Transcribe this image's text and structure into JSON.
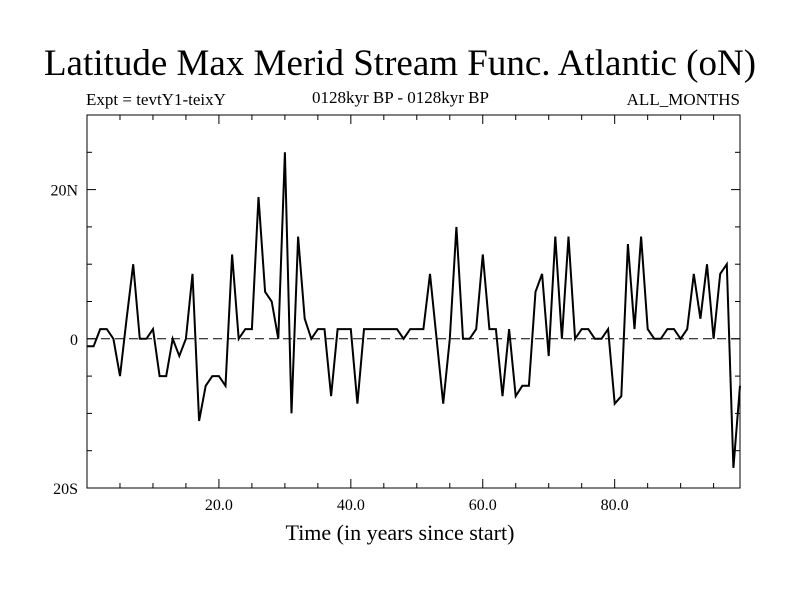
{
  "chart_data": {
    "type": "line",
    "title": "Latitude Max Merid Stream Func. Atlantic (oN)",
    "subtitle_left": "Expt = tevtY1-teixY",
    "subtitle_center": "0128kyr BP - 0128kyr BP",
    "subtitle_right": "ALL_MONTHS",
    "xlabel": "Time (in years since start)",
    "ylabel": "",
    "xlim": [
      0,
      99
    ],
    "ylim": [
      -20,
      30
    ],
    "x_ticks": [
      20,
      40,
      60,
      80
    ],
    "x_tick_labels": [
      "20.0",
      "40.0",
      "60.0",
      "80.0"
    ],
    "y_ticks": [
      -20,
      0,
      20
    ],
    "y_tick_labels": [
      "20S",
      "0",
      "20N"
    ],
    "zero_line": "dashed",
    "grid": false,
    "series": [
      {
        "x": [
          0,
          1,
          2,
          3,
          4,
          5,
          6,
          7,
          8,
          9,
          10,
          11,
          12,
          13,
          14,
          15,
          16,
          17,
          18,
          19,
          20,
          21,
          22,
          23,
          24,
          25,
          26,
          27,
          28,
          29,
          30,
          31,
          32,
          33,
          34,
          35,
          36,
          37,
          38,
          39,
          40,
          41,
          42,
          43,
          44,
          45,
          46,
          47,
          48,
          49,
          50,
          51,
          52,
          53,
          54,
          55,
          56,
          57,
          58,
          59,
          60,
          61,
          62,
          63,
          64,
          65,
          66,
          67,
          68,
          69,
          70,
          71,
          72,
          73,
          74,
          75,
          76,
          77,
          78,
          79,
          80,
          81,
          82,
          83,
          84,
          85,
          86,
          87,
          88,
          89,
          90,
          91,
          92,
          93,
          94,
          95,
          96,
          97,
          98,
          99
        ],
        "y": [
          -1,
          -1,
          1.3,
          1.3,
          0,
          -5,
          2.7,
          10,
          0,
          0,
          1.3,
          -5,
          -5,
          0,
          -2.3,
          0,
          8.7,
          -11,
          -6.3,
          -5,
          -5,
          -6.3,
          11.3,
          0,
          1.3,
          1.3,
          19,
          6.3,
          5,
          0,
          25,
          -10,
          13.7,
          2.7,
          0,
          1.3,
          1.3,
          -7.7,
          1.3,
          1.3,
          1.3,
          -8.7,
          1.3,
          1.3,
          1.3,
          1.3,
          1.3,
          1.3,
          0,
          1.3,
          1.3,
          1.3,
          8.7,
          0,
          -8.7,
          0,
          15,
          0,
          0,
          1.3,
          11.3,
          1.3,
          1.3,
          -7.7,
          1.3,
          -7.7,
          -6.3,
          -6.3,
          6.3,
          8.7,
          -2.3,
          13.7,
          0,
          13.7,
          0,
          1.3,
          1.3,
          0,
          0,
          1.3,
          -8.7,
          -7.7,
          12.7,
          1.3,
          13.7,
          1.3,
          0,
          0,
          1.3,
          1.3,
          0,
          1.3,
          8.7,
          2.7,
          10,
          0,
          8.7,
          10,
          -17.3,
          -6.3
        ]
      }
    ]
  }
}
